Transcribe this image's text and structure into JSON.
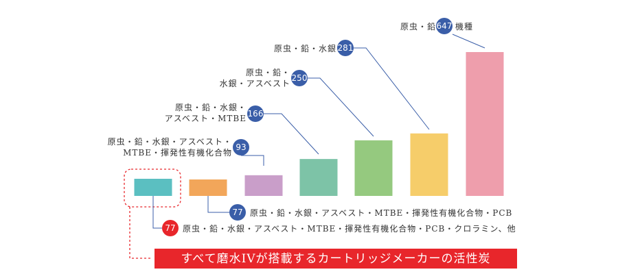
{
  "chart_data": {
    "type": "bar",
    "categories": [
      "原虫・鉛・水銀・アスベスト・MTBE・揮発性有機化合物・PCB・クロラミン、他",
      "原虫・鉛・水銀・アスベスト・MTBE・揮発性有機化合物・PCB",
      "原虫・鉛・水銀・アスベスト・MTBE・揮発性有機化合物",
      "原虫・鉛・水銀・アスベスト・MTBE",
      "原虫・鉛・水銀・アスベスト",
      "原虫・鉛・水銀",
      "原虫・鉛"
    ],
    "values": [
      77,
      77,
      93,
      166,
      250,
      281,
      647
    ],
    "colors": [
      "#5bbfc1",
      "#f2a65a",
      "#c99ec9",
      "#7dc3a7",
      "#95c97f",
      "#f6cd6a",
      "#ee9eac"
    ],
    "badge_colors": [
      "#e8262b",
      "#3a5ea8",
      "#3a5ea8",
      "#3a5ea8",
      "#3a5ea8",
      "#3a5ea8",
      "#3a5ea8"
    ],
    "labels": [
      {
        "lines": [
          "原虫・鉛・水銀・アスベスト・MTBE・揮発性有機化合物・PCB・クロラミン、他"
        ],
        "value": "77"
      },
      {
        "lines": [
          "原虫・鉛・水銀・アスベスト・MTBE・揮発性有機化合物・PCB"
        ],
        "value": "77"
      },
      {
        "lines": [
          "原虫・鉛・水銀・アスベスト・",
          "MTBE・揮発性有機化合物"
        ],
        "value": "93"
      },
      {
        "lines": [
          "原虫・鉛・水銀・",
          "アスベスト・MTBE"
        ],
        "value": "166"
      },
      {
        "lines": [
          "原虫・鉛・",
          "水銀・アスベスト"
        ],
        "value": "250"
      },
      {
        "lines": [
          "原虫・鉛・水銀"
        ],
        "value": "281"
      },
      {
        "lines": [
          "原虫・鉛"
        ],
        "value": "647",
        "suffix": "機種"
      }
    ],
    "highlight_index": 0,
    "highlight_color": "#e8262b",
    "banner": "すべて磨水IVが搭載するカートリッジメーカーの活性炭",
    "banner_color": "#e8262b",
    "leader_color": "#3a5ea8",
    "ylim": [
      0,
      647
    ]
  }
}
